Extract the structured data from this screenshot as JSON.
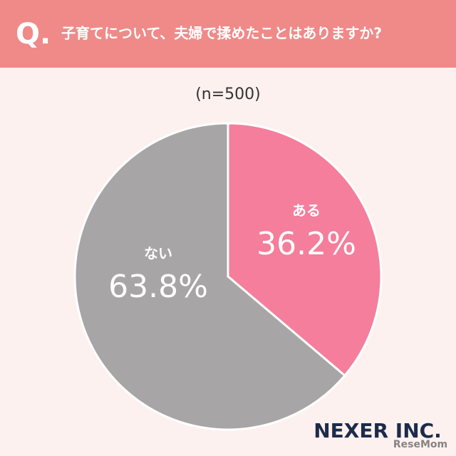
{
  "chart_data": {
    "type": "pie",
    "question_mark": "Q.",
    "title": "子育てについて、夫婦で揉めたことはありますか?",
    "subtitle": "(n=500)",
    "categories": [
      "ある",
      "ない"
    ],
    "values": [
      36.2,
      63.8
    ],
    "value_labels": [
      "36.2%",
      "63.8%"
    ],
    "colors": [
      "#f47e9b",
      "#a7a5a6"
    ],
    "brand": "NEXER INC.",
    "watermark": "ReseMom"
  }
}
